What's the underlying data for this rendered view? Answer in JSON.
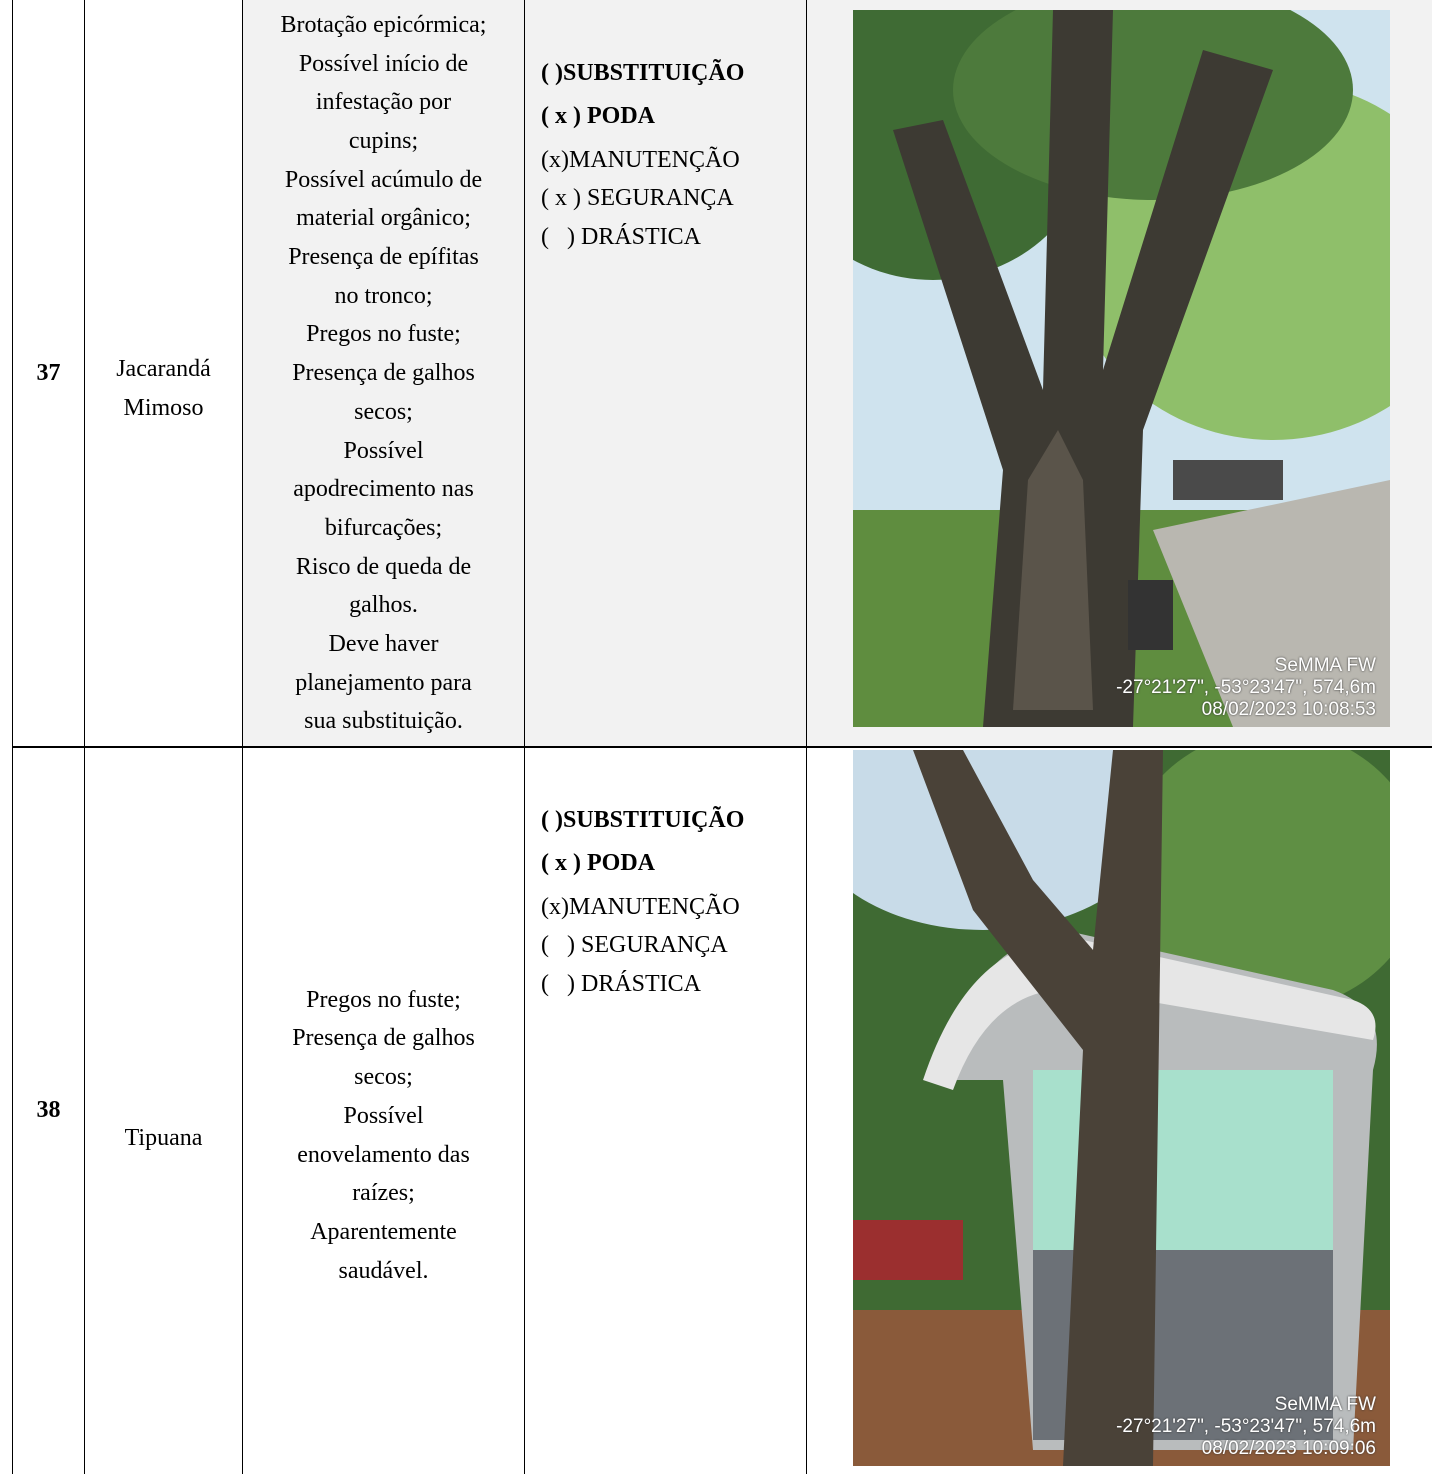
{
  "table": {
    "rows": [
      {
        "number": "37",
        "species": [
          "Jacarandá",
          "Mimoso"
        ],
        "problems": [
          "Brotação epicórmica;",
          "Possível início de",
          "infestação por",
          "cupins;",
          "Possível acúmulo de",
          "material orgânico;",
          "Presença de epífitas",
          "no tronco;",
          "Pregos no fuste;",
          "Presença de galhos",
          "secos;",
          "Possível",
          "apodrecimento nas",
          "bifurcações;",
          "Risco de queda de",
          "galhos.",
          "Deve haver",
          "planejamento para",
          "sua substituição."
        ],
        "actions": [
          "( )SUBSTITUIÇÃO",
          "( x ) PODA",
          "(x)MANUTENÇÃO",
          "( x ) SEGURANÇA",
          "(   ) DRÁSTICA"
        ],
        "photo_stamp": [
          "SeMMA FW",
          "-27°21'27\", -53°23'47\", 574,6m",
          "08/02/2023 10:08:53"
        ]
      },
      {
        "number": "38",
        "species": [
          "Tipuana"
        ],
        "problems": [
          "Pregos no fuste;",
          "Presença de galhos",
          "secos;",
          "Possível",
          "enovelamento das",
          "raízes;",
          "Aparentemente",
          "saudável."
        ],
        "actions": [
          "( )SUBSTITUIÇÃO",
          "( x ) PODA",
          "(x)MANUTENÇÃO",
          "(   ) SEGURANÇA",
          "(   ) DRÁSTICA"
        ],
        "photo_stamp": [
          "SeMMA FW",
          "-27°21'27\", -53°23'47\", 574,6m",
          "08/02/2023 10:09:06"
        ]
      }
    ]
  }
}
